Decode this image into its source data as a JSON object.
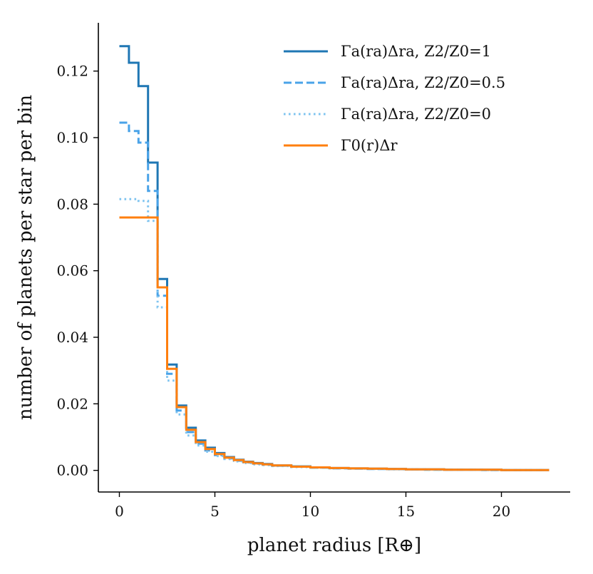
{
  "chart_data": {
    "type": "line",
    "title": "",
    "xlabel": "planet radius [R⊕]",
    "ylabel": "number of planets per star per bin",
    "xlim": [
      -1.1,
      23.6
    ],
    "ylim": [
      -0.0065,
      0.1345
    ],
    "xticks": [
      0,
      5,
      10,
      15,
      20
    ],
    "xtick_labels": [
      "0",
      "5",
      "10",
      "15",
      "20"
    ],
    "yticks": [
      0.0,
      0.02,
      0.04,
      0.06,
      0.08,
      0.1,
      0.12
    ],
    "ytick_labels": [
      "0.00",
      "0.02",
      "0.04",
      "0.06",
      "0.08",
      "0.10",
      "0.12"
    ],
    "grid": false,
    "legend_position": "top-right",
    "bin_edges": [
      0,
      0.5,
      1,
      1.5,
      2,
      2.5,
      3,
      3.5,
      4,
      4.5,
      5,
      5.5,
      6,
      6.5,
      7,
      7.5,
      8,
      9,
      10,
      11,
      12,
      13,
      14,
      15,
      16,
      17,
      18,
      19,
      20,
      21,
      22.5
    ],
    "series": [
      {
        "name": "Γa(ra)Δra, Z2/Z0=1",
        "color": "#1f77b4",
        "style": "solid",
        "values": [
          0.1275,
          0.1225,
          0.1155,
          0.0925,
          0.0575,
          0.0318,
          0.0195,
          0.0128,
          0.009,
          0.0068,
          0.0052,
          0.004,
          0.0032,
          0.0026,
          0.0022,
          0.0019,
          0.0015,
          0.0012,
          0.0009,
          0.0007,
          0.0006,
          0.0005,
          0.0004,
          0.0003,
          0.0003,
          0.0002,
          0.0002,
          0.0002,
          0.0001,
          0.0001
        ]
      },
      {
        "name": "Γa(ra)Δra, Z2/Z0=0.5",
        "color": "#4aa3e8",
        "style": "dashed",
        "values": [
          0.1045,
          0.102,
          0.0985,
          0.084,
          0.0525,
          0.029,
          0.018,
          0.0115,
          0.008,
          0.006,
          0.0046,
          0.0036,
          0.0029,
          0.0024,
          0.002,
          0.0017,
          0.0014,
          0.0011,
          0.0008,
          0.0006,
          0.0005,
          0.0004,
          0.0004,
          0.0003,
          0.0002,
          0.0002,
          0.0002,
          0.0001,
          0.0001,
          0.0001
        ]
      },
      {
        "name": "Γa(ra)Δra, Z2/Z0=0",
        "color": "#7fc4f0",
        "style": "dotted",
        "values": [
          0.0815,
          0.0815,
          0.081,
          0.075,
          0.049,
          0.027,
          0.0168,
          0.0105,
          0.0075,
          0.0056,
          0.0043,
          0.0034,
          0.0027,
          0.0022,
          0.0018,
          0.0016,
          0.0013,
          0.001,
          0.0008,
          0.0006,
          0.0005,
          0.0004,
          0.0003,
          0.0003,
          0.0002,
          0.0002,
          0.0002,
          0.0001,
          0.0001,
          0.0001
        ]
      },
      {
        "name": "Γ0(r)Δr",
        "color": "#ff7f0e",
        "style": "solid",
        "values": [
          0.076,
          0.076,
          0.076,
          0.076,
          0.055,
          0.0305,
          0.019,
          0.0122,
          0.0085,
          0.0064,
          0.0049,
          0.0038,
          0.0031,
          0.0025,
          0.0021,
          0.0018,
          0.0015,
          0.0011,
          0.0009,
          0.0007,
          0.0006,
          0.0005,
          0.0004,
          0.0003,
          0.0003,
          0.0002,
          0.0002,
          0.0002,
          0.0001,
          0.0001
        ]
      }
    ]
  }
}
